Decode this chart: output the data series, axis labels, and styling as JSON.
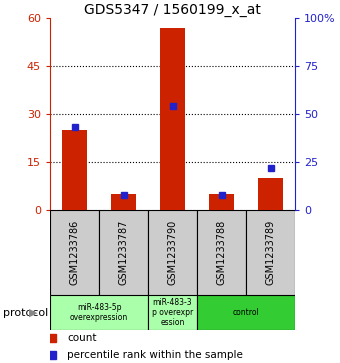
{
  "title": "GDS5347 / 1560199_x_at",
  "samples": [
    "GSM1233786",
    "GSM1233787",
    "GSM1233790",
    "GSM1233788",
    "GSM1233789"
  ],
  "counts": [
    25,
    5,
    57,
    5,
    10
  ],
  "percentiles": [
    43,
    8,
    54,
    8,
    22
  ],
  "ylim_left": [
    0,
    60
  ],
  "ylim_right": [
    0,
    100
  ],
  "yticks_left": [
    0,
    15,
    30,
    45,
    60
  ],
  "yticks_right": [
    0,
    25,
    50,
    75,
    100
  ],
  "ytick_labels_right": [
    "0",
    "25",
    "50",
    "75",
    "100%"
  ],
  "bar_color": "#cc2200",
  "marker_color": "#2222cc",
  "plot_bg": "#ffffff",
  "protocol_label": "protocol",
  "legend_count_label": "count",
  "legend_pct_label": "percentile rank within the sample",
  "left_axis_color": "#cc2200",
  "right_axis_color": "#2222cc",
  "groups": [
    {
      "start": 0,
      "end": 2,
      "label": "miR-483-5p\noverexpression",
      "color": "#aaffaa"
    },
    {
      "start": 2,
      "end": 3,
      "label": "miR-483-3\np overexpr\nession",
      "color": "#aaffaa"
    },
    {
      "start": 3,
      "end": 5,
      "label": "control",
      "color": "#33cc33"
    }
  ]
}
